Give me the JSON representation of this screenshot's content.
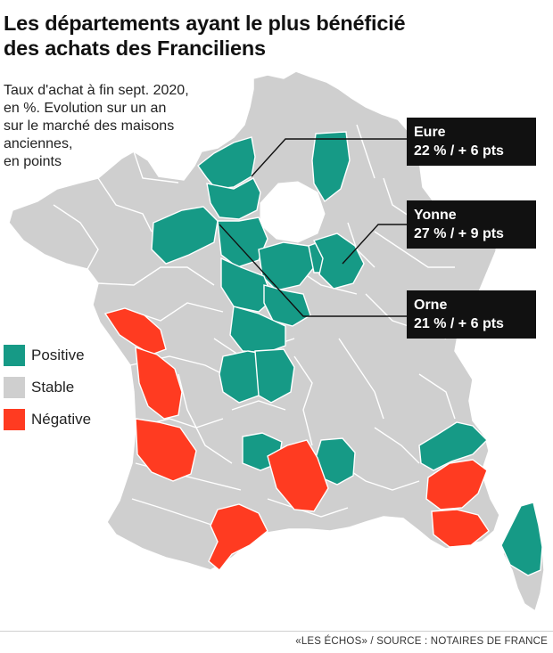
{
  "title": {
    "line1": "Les départements ayant le plus bénéficié",
    "line2": "des achats des Franciliens"
  },
  "subtitle": {
    "line1": "Taux d'achat à fin sept. 2020,",
    "line2": "en %. Evolution sur un an",
    "line3": "sur le marché des maisons",
    "line4": "anciennes,",
    "line5": "en points"
  },
  "callouts": {
    "eure": {
      "name": "Eure",
      "value": "22 % / + 6 pts"
    },
    "yonne": {
      "name": "Yonne",
      "value": "27 % / + 9 pts"
    },
    "orne": {
      "name": "Orne",
      "value": "21 % / + 6 pts"
    }
  },
  "legend": {
    "positive": {
      "label": "Positive",
      "color": "#169a86"
    },
    "stable": {
      "label": "Stable",
      "color": "#cfcfcf"
    },
    "negative": {
      "label": "Négative",
      "color": "#ff3b21"
    }
  },
  "colors": {
    "stable": "#cfcfcf",
    "positive": "#169a86",
    "negative": "#ff3b21",
    "borders": "#ffffff",
    "callout_bg": "#111111"
  },
  "source": "«LES ÉCHOS» / SOURCE : NOTAIRES DE FRANCE"
}
